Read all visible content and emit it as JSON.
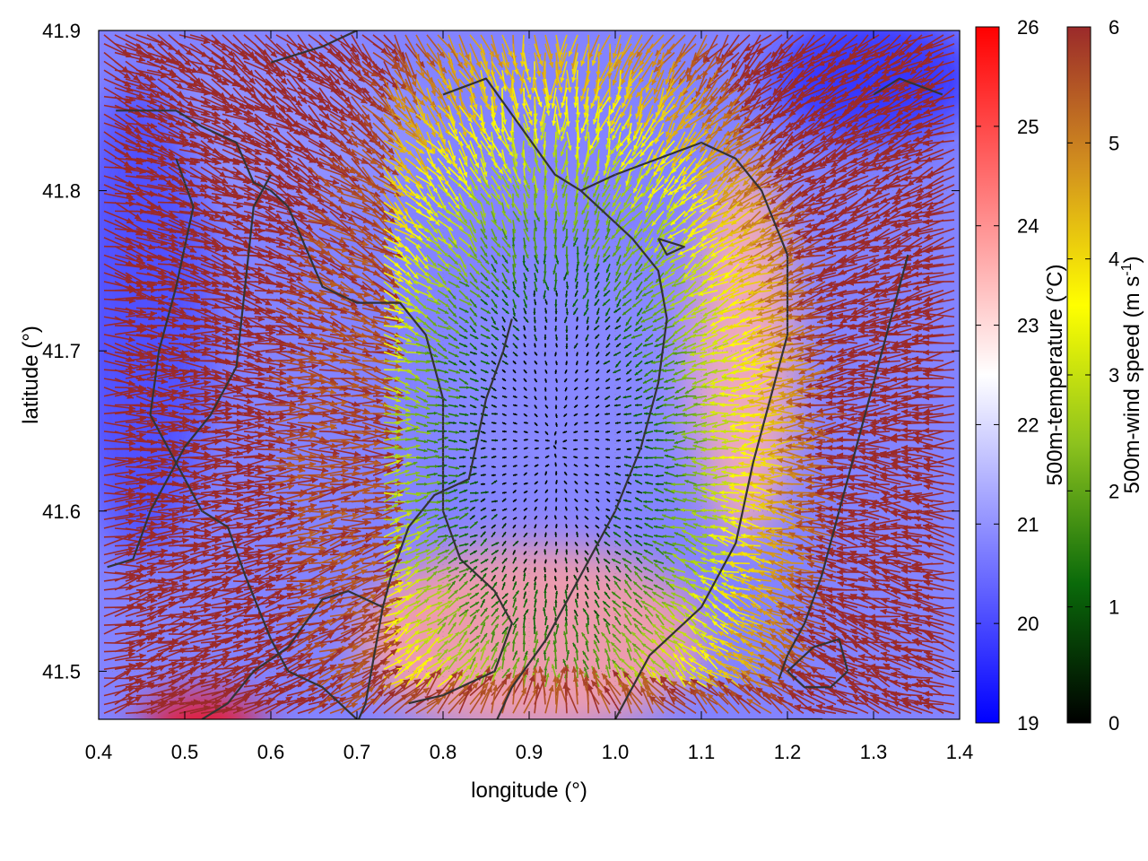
{
  "chart_data": {
    "type": "heatmap",
    "title": "",
    "xlabel": "longitude (°)",
    "ylabel": "latitude (°)",
    "xlim": [
      0.4,
      1.4
    ],
    "ylim": [
      1.45,
      41.9
    ],
    "xticks": [
      0.4,
      0.5,
      0.6,
      0.7,
      0.8,
      0.9,
      1.0,
      1.1,
      1.2,
      1.3,
      1.4
    ],
    "xtick_labels": [
      "0.4",
      "0.5",
      "0.6",
      "0.7",
      "0.8",
      "0.9",
      "1.0",
      "1.1",
      "1.2",
      "1.3",
      "1.4"
    ],
    "yticks": [
      41.5,
      41.6,
      41.7,
      41.8,
      41.9
    ],
    "ytick_labels": [
      "41.5",
      "41.6",
      "41.7",
      "41.8",
      "41.9"
    ],
    "grid": true,
    "colorbars": [
      {
        "label": "500m-temperature (°C)",
        "range": [
          19,
          26
        ],
        "ticks": [
          19,
          20,
          21,
          22,
          23,
          24,
          25,
          26
        ],
        "tick_labels": [
          "19",
          "20",
          "21",
          "22",
          "23",
          "24",
          "25",
          "26"
        ],
        "colors": [
          "#0000ff",
          "#ffffff",
          "#ff0000"
        ]
      },
      {
        "label": "500m-wind speed (m s",
        "label_sup": "-1",
        "label_end": ")",
        "range": [
          0,
          6
        ],
        "ticks": [
          0,
          1,
          2,
          3,
          4,
          5,
          6
        ],
        "tick_labels": [
          "0",
          "1",
          "2",
          "3",
          "4",
          "5",
          "6"
        ],
        "colors": [
          "#000000",
          "#0a6a0a",
          "#8cc21e",
          "#ffff00",
          "#d2901e",
          "#9b2a2a"
        ]
      }
    ],
    "temperature_field": {
      "background_c": 20.8,
      "anomalies": [
        {
          "lon": 0.52,
          "lat": 41.465,
          "rlon": 0.07,
          "rlat": 0.02,
          "temp_c": 26.0
        },
        {
          "lon": 0.9,
          "lat": 41.52,
          "rlon": 0.2,
          "rlat": 0.06,
          "temp_c": 23.8
        },
        {
          "lon": 1.15,
          "lat": 41.7,
          "rlon": 0.06,
          "rlat": 0.12,
          "temp_c": 23.6
        },
        {
          "lon": 0.95,
          "lat": 41.68,
          "rlon": 0.14,
          "rlat": 0.08,
          "temp_c": 20.9
        },
        {
          "lon": 0.63,
          "lat": 41.84,
          "rlon": 0.16,
          "rlat": 0.05,
          "temp_c": 21.0
        },
        {
          "lon": 1.3,
          "lat": 41.87,
          "rlon": 0.12,
          "rlat": 0.04,
          "temp_c": 19.6
        },
        {
          "lon": 0.45,
          "lat": 41.72,
          "rlon": 0.08,
          "rlat": 0.15,
          "temp_c": 20.0
        }
      ]
    },
    "wind_field": {
      "grid_spacing_deg": [
        0.0125,
        0.0055
      ],
      "calm_center": {
        "lon": 0.93,
        "lat": 41.64
      },
      "calm_radius_deg": [
        0.15,
        0.14
      ],
      "max_speed_ms": 6.0,
      "direction": "convergent inflow from surroundings, stronger on west and south"
    },
    "contours": [
      [
        [
          0.42,
          41.85
        ],
        [
          0.49,
          41.85
        ],
        [
          0.52,
          41.84
        ],
        [
          0.56,
          41.83
        ],
        [
          0.58,
          41.805
        ],
        [
          0.6,
          41.8
        ],
        [
          0.62,
          41.79
        ],
        [
          0.66,
          41.74
        ],
        [
          0.7,
          41.73
        ],
        [
          0.75,
          41.73
        ],
        [
          0.78,
          41.71
        ],
        [
          0.8,
          41.67
        ],
        [
          0.8,
          41.6
        ],
        [
          0.82,
          41.57
        ],
        [
          0.86,
          41.55
        ],
        [
          0.88,
          41.53
        ],
        [
          0.86,
          41.5
        ],
        [
          0.8,
          41.485
        ],
        [
          0.76,
          41.48
        ]
      ],
      [
        [
          0.49,
          41.82
        ],
        [
          0.51,
          41.79
        ],
        [
          0.49,
          41.74
        ],
        [
          0.47,
          41.7
        ],
        [
          0.46,
          41.66
        ],
        [
          0.48,
          41.64
        ],
        [
          0.52,
          41.6
        ],
        [
          0.55,
          41.59
        ],
        [
          0.57,
          41.56
        ],
        [
          0.6,
          41.52
        ],
        [
          0.62,
          41.5
        ],
        [
          0.66,
          41.49
        ],
        [
          0.7,
          41.47
        ],
        [
          0.72,
          41.455
        ]
      ],
      [
        [
          0.41,
          41.565
        ],
        [
          0.44,
          41.57
        ],
        [
          0.46,
          41.6
        ],
        [
          0.5,
          41.64
        ],
        [
          0.53,
          41.66
        ],
        [
          0.56,
          41.69
        ],
        [
          0.57,
          41.74
        ],
        [
          0.58,
          41.79
        ],
        [
          0.6,
          41.81
        ]
      ],
      [
        [
          0.52,
          41.47
        ],
        [
          0.55,
          41.48
        ],
        [
          0.58,
          41.5
        ],
        [
          0.62,
          41.515
        ],
        [
          0.66,
          41.545
        ],
        [
          0.69,
          41.55
        ],
        [
          0.73,
          41.54
        ],
        [
          0.71,
          41.48
        ],
        [
          0.69,
          41.455
        ]
      ],
      [
        [
          0.73,
          41.54
        ],
        [
          0.74,
          41.56
        ],
        [
          0.76,
          41.59
        ],
        [
          0.79,
          41.61
        ],
        [
          0.83,
          41.62
        ],
        [
          0.85,
          41.67
        ],
        [
          0.87,
          41.7
        ],
        [
          0.88,
          41.72
        ]
      ],
      [
        [
          0.85,
          41.455
        ],
        [
          0.88,
          41.49
        ],
        [
          0.92,
          41.52
        ],
        [
          0.96,
          41.56
        ],
        [
          1.0,
          41.6
        ],
        [
          1.03,
          41.64
        ],
        [
          1.05,
          41.68
        ],
        [
          1.06,
          41.72
        ],
        [
          1.05,
          41.75
        ],
        [
          1.02,
          41.77
        ],
        [
          0.98,
          41.79
        ],
        [
          0.96,
          41.8
        ],
        [
          0.93,
          41.81
        ],
        [
          0.89,
          41.84
        ],
        [
          0.85,
          41.87
        ],
        [
          0.8,
          41.86
        ]
      ],
      [
        [
          0.96,
          41.8
        ],
        [
          1.0,
          41.81
        ],
        [
          1.05,
          41.82
        ],
        [
          1.1,
          41.83
        ],
        [
          1.14,
          41.82
        ],
        [
          1.17,
          41.8
        ],
        [
          1.2,
          41.76
        ],
        [
          1.2,
          41.71
        ],
        [
          1.18,
          41.67
        ],
        [
          1.16,
          41.63
        ],
        [
          1.14,
          41.58
        ],
        [
          1.1,
          41.54
        ],
        [
          1.04,
          41.51
        ],
        [
          1.0,
          41.47
        ],
        [
          0.98,
          41.455
        ]
      ],
      [
        [
          1.34,
          41.76
        ],
        [
          1.32,
          41.72
        ],
        [
          1.3,
          41.68
        ],
        [
          1.28,
          41.64
        ],
        [
          1.26,
          41.6
        ],
        [
          1.24,
          41.56
        ],
        [
          1.22,
          41.53
        ],
        [
          1.2,
          41.51
        ],
        [
          1.19,
          41.495
        ]
      ],
      [
        [
          1.27,
          41.5
        ],
        [
          1.26,
          41.52
        ],
        [
          1.23,
          41.515
        ],
        [
          1.2,
          41.5
        ],
        [
          1.22,
          41.49
        ],
        [
          1.25,
          41.49
        ],
        [
          1.27,
          41.5
        ]
      ],
      [
        [
          1.05,
          41.77
        ],
        [
          1.08,
          41.765
        ],
        [
          1.06,
          41.76
        ],
        [
          1.05,
          41.77
        ]
      ],
      [
        [
          0.6,
          41.88
        ],
        [
          0.66,
          41.89
        ],
        [
          0.7,
          41.9
        ]
      ],
      [
        [
          1.16,
          41.455
        ],
        [
          1.2,
          41.47
        ],
        [
          1.24,
          41.47
        ],
        [
          1.27,
          41.455
        ]
      ],
      [
        [
          1.3,
          41.86
        ],
        [
          1.33,
          41.87
        ],
        [
          1.38,
          41.86
        ]
      ]
    ]
  }
}
